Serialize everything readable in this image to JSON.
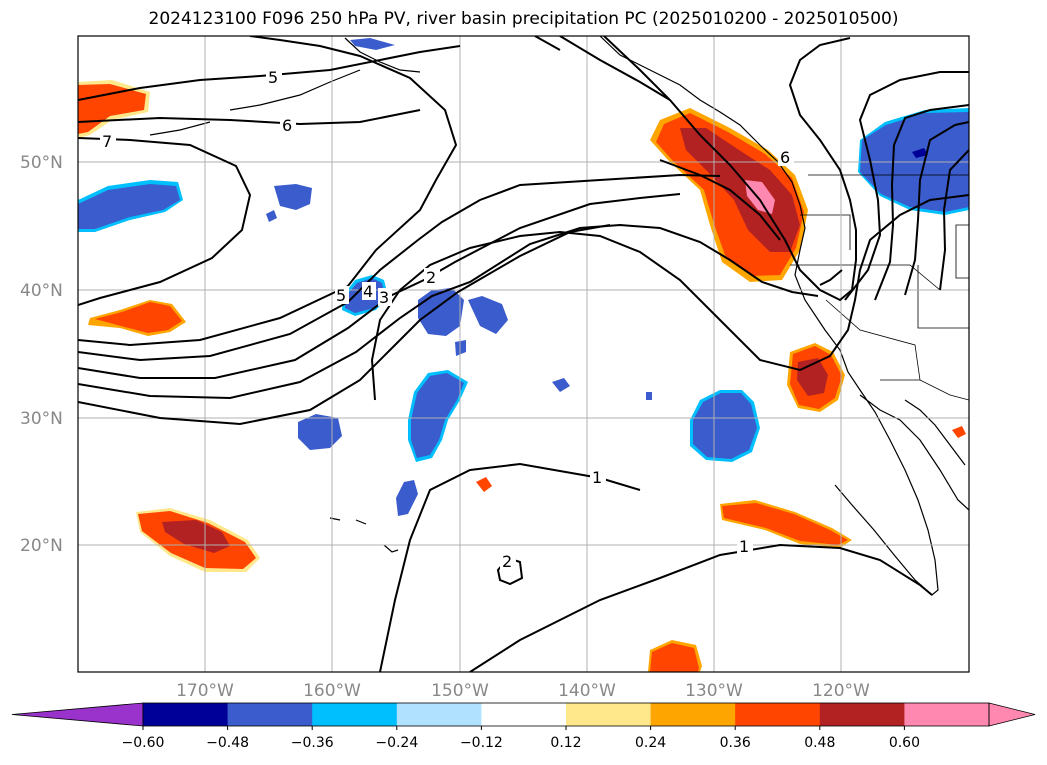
{
  "title": "2024123100 F096 250 hPa PV, river basin precipitation PC (2025010200 - 2025010500)",
  "lat_labels": [
    "50°N",
    "40°N",
    "30°N",
    "20°N"
  ],
  "lon_labels": [
    "170°W",
    "160°W",
    "150°W",
    "140°W",
    "130°W",
    "120°W"
  ],
  "pv_contour_labels": [
    "7",
    "6",
    "5",
    "5",
    "4",
    "3",
    "2",
    "1",
    "1",
    "2",
    "6"
  ],
  "colorbar": {
    "ticks": [
      "−0.60",
      "−0.48",
      "−0.36",
      "−0.24",
      "−0.12",
      "0.12",
      "0.24",
      "0.36",
      "0.48",
      "0.60"
    ],
    "colors": [
      "#9933cc",
      "#000099",
      "#3a5ccc",
      "#00bfff",
      "#b0e2ff",
      "#ffffff",
      "#ffe88c",
      "#ffa500",
      "#ff4500",
      "#b22222",
      "#ff88b0",
      "#ff88b0"
    ],
    "under_color": "#9933cc",
    "over_color": "#ff88b0"
  },
  "colors": {
    "positive_main": "#ff4500",
    "positive_strong": "#b22222",
    "positive_max": "#ff88b0",
    "negative_main": "#3a5ccc",
    "negative_edge": "#00bfff",
    "grid": "#b0b0b0",
    "label": "#888888"
  }
}
